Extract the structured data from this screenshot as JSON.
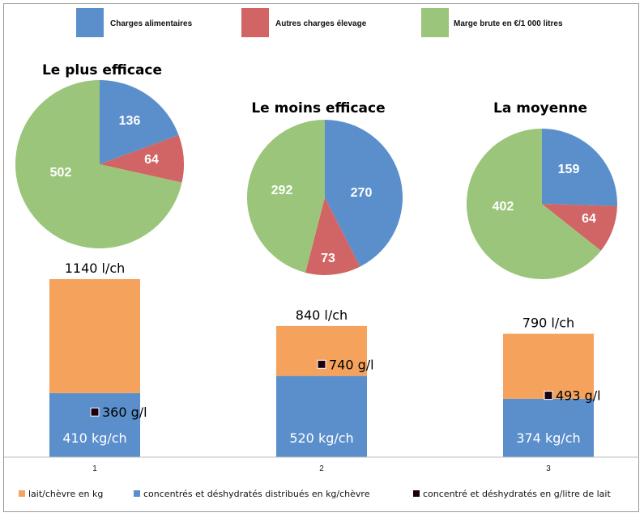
{
  "chart_data": [
    {
      "type": "pie",
      "legend": {
        "position": "top",
        "entries": [
          {
            "name": "Charges alimentaires",
            "color": "#5b8fcc"
          },
          {
            "name": "Autres charges élevage",
            "color": "#d16464"
          },
          {
            "name": "Marge brute en €/1 000 litres",
            "color": "#9bc57a"
          }
        ]
      },
      "pies": [
        {
          "title": "Le plus efficace",
          "values": [
            136,
            64,
            502
          ],
          "labels": [
            "136",
            "64",
            "502"
          ]
        },
        {
          "title": "Le moins efficace",
          "values": [
            270,
            73,
            292
          ],
          "labels": [
            "270",
            "73",
            "292"
          ]
        },
        {
          "title": "La moyenne",
          "values": [
            159,
            64,
            402
          ],
          "labels": [
            "159",
            "64",
            "402"
          ]
        }
      ]
    },
    {
      "type": "bar",
      "stacked": true,
      "categories": [
        "1",
        "2",
        "3"
      ],
      "totals_labels": [
        "1140 l/ch",
        "840 l/ch",
        "790 l/ch"
      ],
      "totals": [
        1140,
        840,
        790
      ],
      "series": [
        {
          "name": "concentrés et déshydratés distribués en kg/chèvre",
          "values": [
            410,
            520,
            374
          ],
          "labels": [
            "410 kg/ch",
            "520 kg/ch",
            "374 kg/ch"
          ],
          "color": "#5b8fcc"
        },
        {
          "name": "lait/chèvre en kg",
          "values": [
            730,
            320,
            416
          ],
          "color": "#f5a35c"
        }
      ],
      "markers": {
        "name": "concentré et déshydratés en g/litre de lait",
        "values": [
          360,
          740,
          493
        ],
        "labels": [
          "360 g/l",
          "740 g/l",
          "493 g/l"
        ],
        "color": "#1a0010"
      },
      "legend": {
        "position": "bottom"
      },
      "grid": false
    }
  ]
}
